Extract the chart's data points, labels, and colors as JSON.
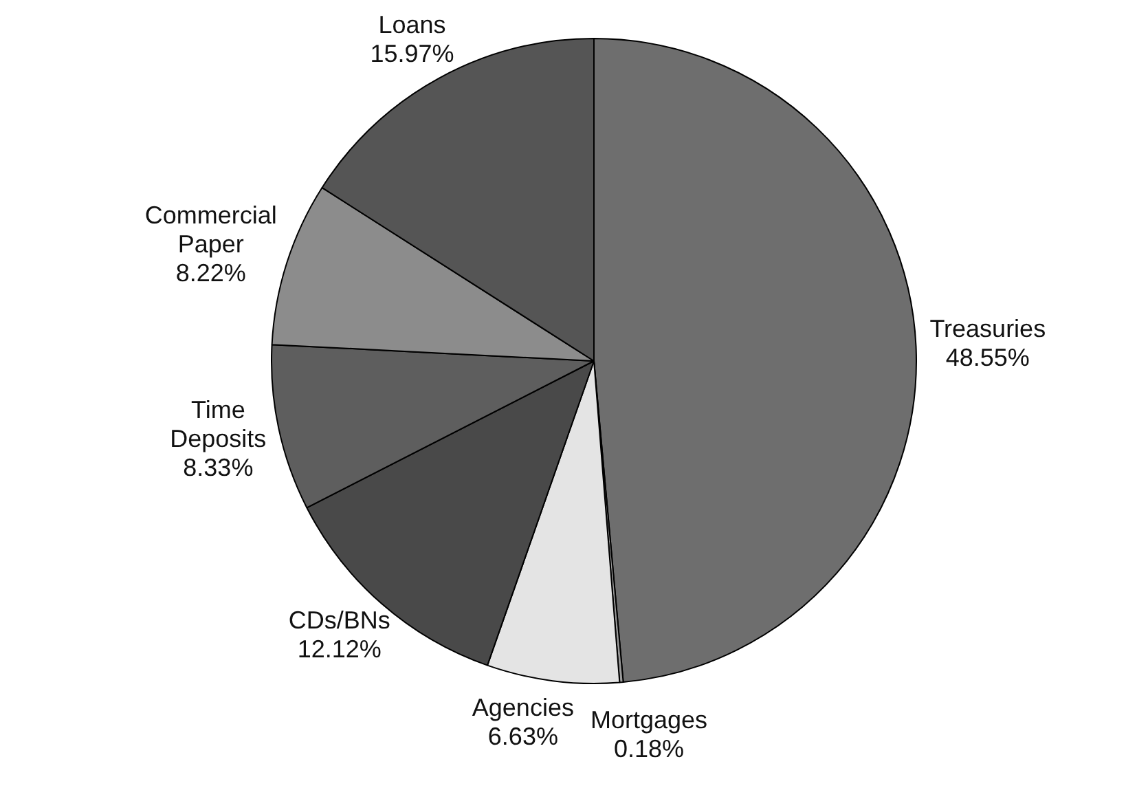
{
  "chart_data": {
    "type": "pie",
    "categories": [
      "Treasuries",
      "Mortgages",
      "Agencies",
      "CDs/BNs",
      "Time Deposits",
      "Commercial Paper",
      "Loans"
    ],
    "values": [
      48.55,
      0.18,
      6.63,
      12.12,
      8.33,
      8.22,
      15.97
    ],
    "value_labels": [
      "48.55%",
      "0.18%",
      "6.63%",
      "12.12%",
      "8.33%",
      "8.22%",
      "15.97%"
    ],
    "colors": [
      "#6e6e6e",
      "#9a9a9a",
      "#e4e4e4",
      "#494949",
      "#5e5e5e",
      "#8c8c8c",
      "#555555"
    ],
    "legend": false
  }
}
